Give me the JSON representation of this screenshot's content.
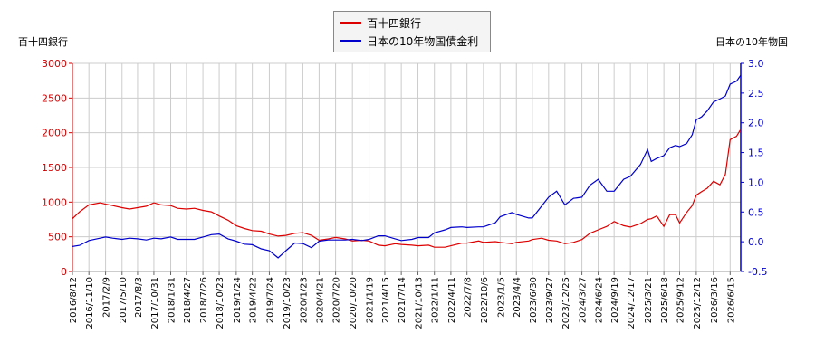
{
  "chart_data": {
    "type": "line",
    "title": "",
    "left_axis_label": "百十四銀行",
    "right_axis_label": "日本の10年物国",
    "left_ylim": [
      0,
      3000
    ],
    "left_ticks": [
      0,
      500,
      1000,
      1500,
      2000,
      2500,
      3000
    ],
    "left_tick_labels": [
      "0",
      "500",
      "1000",
      "1500",
      "2000",
      "2500",
      "3000"
    ],
    "right_ylim": [
      -0.5,
      3.0
    ],
    "right_ticks": [
      -0.5,
      0.0,
      0.5,
      1.0,
      1.5,
      2.0,
      2.5,
      3.0
    ],
    "right_tick_labels": [
      "-0.5",
      "0.0",
      "0.5",
      "1.0",
      "1.5",
      "2.0",
      "2.5",
      "3.0"
    ],
    "x_range": [
      "2016-08-12",
      "2026-08-12"
    ],
    "x_tick_labels": [
      "2016/8/12",
      "2016/11/10",
      "2017/2/9",
      "2017/5/10",
      "2017/8/3",
      "2017/10/31",
      "2018/1/31",
      "2018/4/27",
      "2018/7/26",
      "2018/10/23",
      "2019/1/24",
      "2019/4/22",
      "2019/7/24",
      "2019/10/23",
      "2020/1/23",
      "2020/4/21",
      "2020/7/20",
      "2020/10/20",
      "2021/1/19",
      "2021/4/15",
      "2021/7/14",
      "2021/10/13",
      "2022/1/11",
      "2022/4/11",
      "2022/7/8",
      "2022/10/6",
      "2023/1/5",
      "2023/4/4",
      "2023/6/30",
      "2023/9/27",
      "2023/12/25",
      "2024/3/27",
      "2024/6/24",
      "2024/9/19",
      "2024/12/17",
      "2025/3/21",
      "2025/6/18",
      "2025/9/12",
      "2025/12/12",
      "2026/3/16",
      "2026/6/15"
    ],
    "grid": true,
    "legend_position": "top-center",
    "series": [
      {
        "name": "百十四銀行",
        "axis": "left",
        "color": "#dd0000",
        "x": [
          "2016-08-12",
          "2016-09-20",
          "2016-11-10",
          "2017-01-10",
          "2017-02-09",
          "2017-03-20",
          "2017-05-10",
          "2017-06-20",
          "2017-08-03",
          "2017-09-20",
          "2017-10-31",
          "2017-12-10",
          "2018-01-31",
          "2018-03-10",
          "2018-04-27",
          "2018-06-10",
          "2018-07-26",
          "2018-09-10",
          "2018-10-23",
          "2018-12-10",
          "2019-01-24",
          "2019-03-10",
          "2019-04-22",
          "2019-06-10",
          "2019-07-24",
          "2019-09-10",
          "2019-10-23",
          "2019-12-10",
          "2020-01-23",
          "2020-03-10",
          "2020-04-21",
          "2020-06-10",
          "2020-07-20",
          "2020-09-10",
          "2020-10-20",
          "2020-12-10",
          "2021-01-19",
          "2021-03-10",
          "2021-04-15",
          "2021-06-10",
          "2021-07-14",
          "2021-09-10",
          "2021-10-13",
          "2021-12-10",
          "2022-01-11",
          "2022-03-10",
          "2022-04-11",
          "2022-06-10",
          "2022-07-08",
          "2022-09-10",
          "2022-10-06",
          "2022-12-10",
          "2023-01-05",
          "2023-03-10",
          "2023-04-04",
          "2023-06-10",
          "2023-06-30",
          "2023-08-20",
          "2023-09-27",
          "2023-11-10",
          "2023-12-25",
          "2024-02-10",
          "2024-03-27",
          "2024-05-10",
          "2024-06-24",
          "2024-08-10",
          "2024-09-19",
          "2024-11-10",
          "2024-12-17",
          "2025-02-10",
          "2025-03-21",
          "2025-04-10",
          "2025-05-10",
          "2025-06-18",
          "2025-07-20",
          "2025-08-20",
          "2025-09-12",
          "2025-10-20",
          "2025-11-20",
          "2025-12-12",
          "2026-01-10",
          "2026-02-10",
          "2026-03-16",
          "2026-04-20",
          "2026-05-20",
          "2026-06-15",
          "2026-07-20",
          "2026-08-12"
        ],
        "y": [
          760,
          860,
          960,
          990,
          970,
          950,
          920,
          900,
          920,
          940,
          990,
          960,
          950,
          910,
          900,
          910,
          880,
          860,
          800,
          740,
          660,
          620,
          590,
          580,
          540,
          510,
          520,
          550,
          560,
          520,
          450,
          470,
          490,
          470,
          440,
          450,
          440,
          380,
          370,
          400,
          390,
          380,
          370,
          380,
          350,
          350,
          370,
          410,
          410,
          440,
          420,
          430,
          420,
          400,
          420,
          440,
          460,
          480,
          450,
          440,
          400,
          420,
          460,
          550,
          600,
          650,
          720,
          660,
          640,
          690,
          750,
          760,
          800,
          650,
          820,
          820,
          700,
          850,
          950,
          1100,
          1150,
          1200,
          1300,
          1250,
          1400,
          1900,
          1950,
          2050
        ]
      },
      {
        "name": "日本の10年物国債金利",
        "axis": "right",
        "color": "#0000cc",
        "x": [
          "2016-08-12",
          "2016-09-20",
          "2016-11-10",
          "2017-01-10",
          "2017-02-09",
          "2017-03-20",
          "2017-05-10",
          "2017-06-20",
          "2017-08-03",
          "2017-09-20",
          "2017-10-31",
          "2017-12-10",
          "2018-01-31",
          "2018-03-10",
          "2018-04-27",
          "2018-06-10",
          "2018-07-26",
          "2018-09-10",
          "2018-10-23",
          "2018-12-10",
          "2019-01-24",
          "2019-03-10",
          "2019-04-22",
          "2019-06-10",
          "2019-07-24",
          "2019-09-10",
          "2019-10-23",
          "2019-12-10",
          "2020-01-23",
          "2020-03-10",
          "2020-04-21",
          "2020-06-10",
          "2020-07-20",
          "2020-09-10",
          "2020-10-20",
          "2020-12-10",
          "2021-01-19",
          "2021-03-10",
          "2021-04-15",
          "2021-06-10",
          "2021-07-14",
          "2021-09-10",
          "2021-10-13",
          "2021-12-10",
          "2022-01-11",
          "2022-03-10",
          "2022-04-11",
          "2022-06-10",
          "2022-07-08",
          "2022-09-10",
          "2022-10-06",
          "2022-12-10",
          "2023-01-05",
          "2023-03-10",
          "2023-04-04",
          "2023-06-10",
          "2023-06-30",
          "2023-08-20",
          "2023-09-27",
          "2023-11-10",
          "2023-12-25",
          "2024-02-10",
          "2024-03-27",
          "2024-05-10",
          "2024-06-24",
          "2024-08-10",
          "2024-09-19",
          "2024-11-10",
          "2024-12-17",
          "2025-02-10",
          "2025-03-21",
          "2025-04-10",
          "2025-05-10",
          "2025-06-18",
          "2025-07-20",
          "2025-08-20",
          "2025-09-12",
          "2025-10-20",
          "2025-11-20",
          "2025-12-12",
          "2026-01-10",
          "2026-02-10",
          "2026-03-16",
          "2026-04-20",
          "2026-05-20",
          "2026-06-15",
          "2026-07-20",
          "2026-08-12"
        ],
        "y": [
          -0.08,
          -0.06,
          0.02,
          0.06,
          0.08,
          0.06,
          0.04,
          0.06,
          0.05,
          0.03,
          0.06,
          0.05,
          0.08,
          0.04,
          0.04,
          0.04,
          0.08,
          0.12,
          0.13,
          0.05,
          0.01,
          -0.04,
          -0.05,
          -0.12,
          -0.15,
          -0.27,
          -0.15,
          -0.02,
          -0.03,
          -0.1,
          0.01,
          0.03,
          0.03,
          0.03,
          0.04,
          0.02,
          0.04,
          0.1,
          0.1,
          0.05,
          0.02,
          0.04,
          0.07,
          0.07,
          0.15,
          0.2,
          0.24,
          0.25,
          0.24,
          0.25,
          0.25,
          0.32,
          0.42,
          0.49,
          0.46,
          0.4,
          0.4,
          0.6,
          0.75,
          0.85,
          0.62,
          0.73,
          0.75,
          0.95,
          1.05,
          0.85,
          0.85,
          1.05,
          1.1,
          1.3,
          1.55,
          1.35,
          1.4,
          1.45,
          1.58,
          1.62,
          1.6,
          1.65,
          1.8,
          2.05,
          2.1,
          2.2,
          2.35,
          2.4,
          2.45,
          2.65,
          2.7,
          2.8
        ]
      }
    ]
  }
}
